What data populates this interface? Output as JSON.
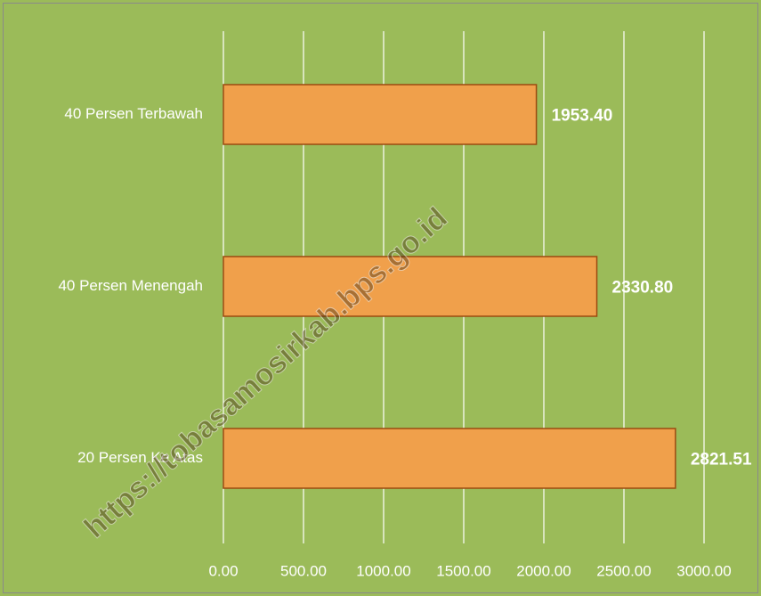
{
  "chart_data": {
    "type": "bar",
    "orientation": "horizontal",
    "categories": [
      "40 Persen Terbawah",
      "40 Persen Menengah",
      "20 Persen Ke Atas"
    ],
    "values": [
      1953.4,
      2330.8,
      2821.51
    ],
    "value_labels": [
      "1953.40",
      "2330.80",
      "2821.51"
    ],
    "color": "#f0a04b",
    "edge_color": "#9c4a10",
    "background": "#9bbb59",
    "xlim": [
      0,
      3000
    ],
    "xticks": [
      {
        "value": 0,
        "label": "0.00"
      },
      {
        "value": 500,
        "label": "500.00"
      },
      {
        "value": 1000,
        "label": "1000.00"
      },
      {
        "value": 1500,
        "label": "1500.00"
      },
      {
        "value": 2000,
        "label": "2000.00"
      },
      {
        "value": 2500,
        "label": "2500.00"
      },
      {
        "value": 3000,
        "label": "3000.00"
      }
    ],
    "grid": true,
    "watermark": "https://tobasamosirkab.bps.go.id"
  }
}
